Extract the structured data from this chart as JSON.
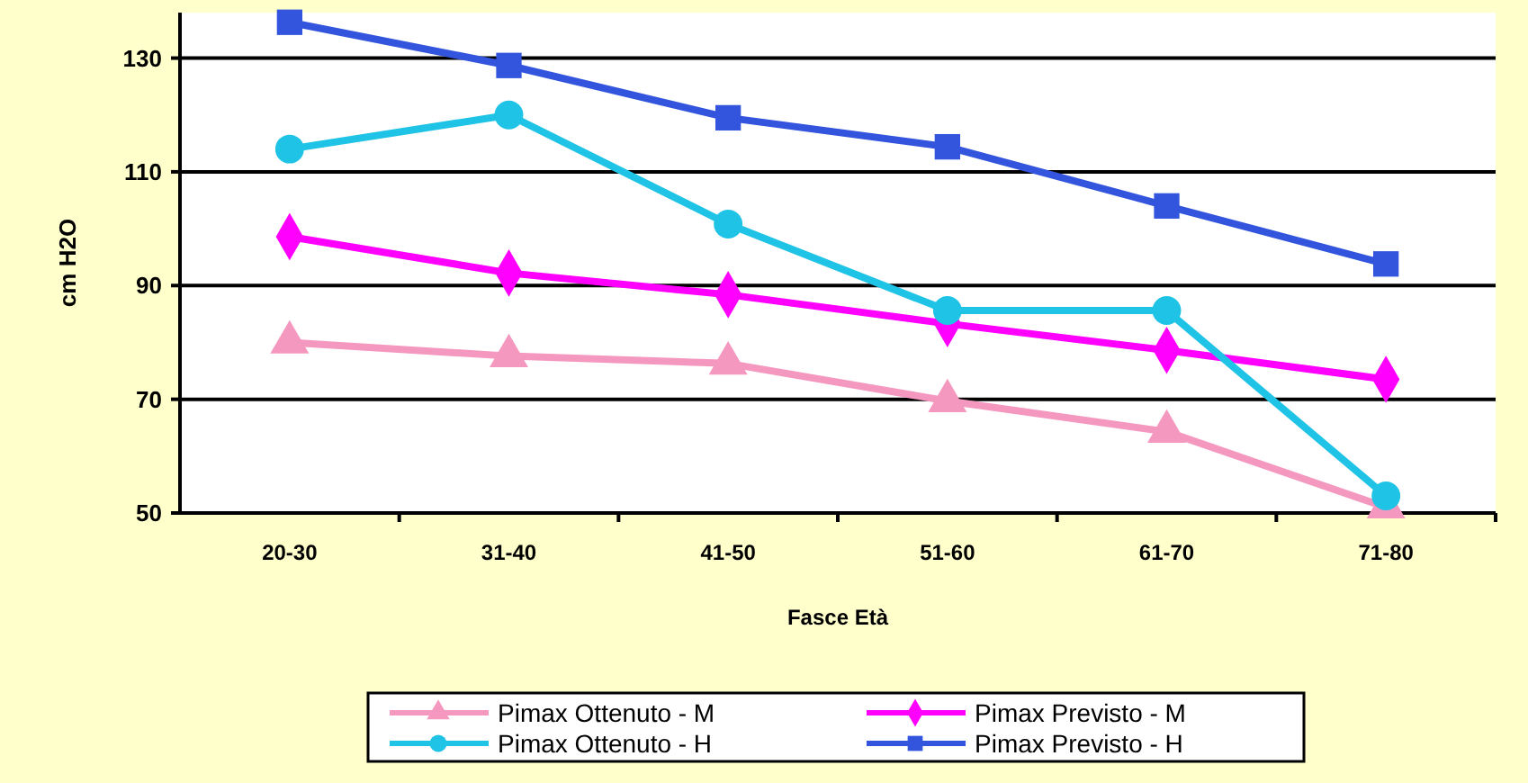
{
  "chart_data": {
    "type": "line",
    "xlabel": "Fasce Età",
    "ylabel": "cm H2O",
    "categories": [
      "20-30",
      "31-40",
      "41-50",
      "51-60",
      "61-70",
      "71-80"
    ],
    "ylim": [
      50,
      138
    ],
    "yticks": [
      50,
      70,
      90,
      110,
      130
    ],
    "grid": "y",
    "legend": "bottom",
    "series": [
      {
        "name": "Pimax Ottenuto - M",
        "color": "#f598c0",
        "marker": "triangle",
        "values": [
          80,
          77.6,
          76.3,
          69.7,
          64.3,
          51
        ]
      },
      {
        "name": "Pimax Previsto - M",
        "color": "#ff00ff",
        "marker": "diamond",
        "values": [
          98.6,
          92.2,
          88.4,
          83.3,
          78.6,
          73.5
        ]
      },
      {
        "name": "Pimax Ottenuto - H",
        "color": "#1fc3e6",
        "marker": "circle",
        "values": [
          114,
          120,
          100.8,
          85.6,
          85.6,
          53
        ]
      },
      {
        "name": "Pimax Previsto - H",
        "color": "#3355dd",
        "marker": "square",
        "values": [
          136.3,
          128.7,
          119.5,
          114.4,
          104,
          93.8
        ]
      }
    ]
  }
}
